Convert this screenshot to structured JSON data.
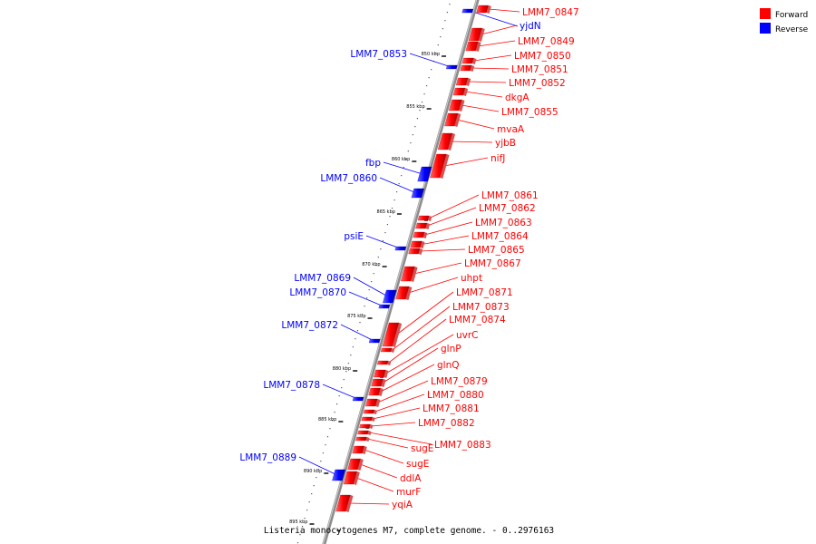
{
  "caption": "Listeria monocytogenes M7, complete genome. - 0..2976163",
  "legend": [
    {
      "label": "Forward",
      "color": "#ff0000"
    },
    {
      "label": "Reverse",
      "color": "#0000ff"
    }
  ],
  "colors": {
    "forward": "#ff0000",
    "reverse": "#0000ff",
    "axis": "#8c8c8c"
  },
  "ticks": [
    "850 kbp",
    "855 kbp",
    "860 kbp",
    "865 kbp",
    "870 kbp",
    "875 kbp",
    "880 kbp",
    "885 kbp",
    "890 kbp",
    "895 kbp"
  ],
  "forward_genes": [
    "LMM7_0847",
    "yjdN",
    "LMM7_0849",
    "LMM7_0850",
    "LMM7_0851",
    "LMM7_0852",
    "dkgA",
    "LMM7_0855",
    "mvaA",
    "yjbB",
    "nifJ",
    "LMM7_0861",
    "LMM7_0862",
    "LMM7_0863",
    "LMM7_0864",
    "LMM7_0865",
    "LMM7_0867",
    "uhpt",
    "LMM7_0871",
    "LMM7_0873",
    "LMM7_0874",
    "uvrC",
    "glnP",
    "glnQ",
    "LMM7_0879",
    "LMM7_0880",
    "LMM7_0881",
    "LMM7_0882",
    "LMM7_0883",
    "sugE",
    "sugE",
    "ddlA",
    "murF",
    "yqiA"
  ],
  "reverse_genes": [
    "LMM7_0853",
    "fbp",
    "LMM7_0860",
    "psiE",
    "LMM7_0869",
    "LMM7_0870",
    "LMM7_0872",
    "LMM7_0878",
    "LMM7_0889"
  ]
}
